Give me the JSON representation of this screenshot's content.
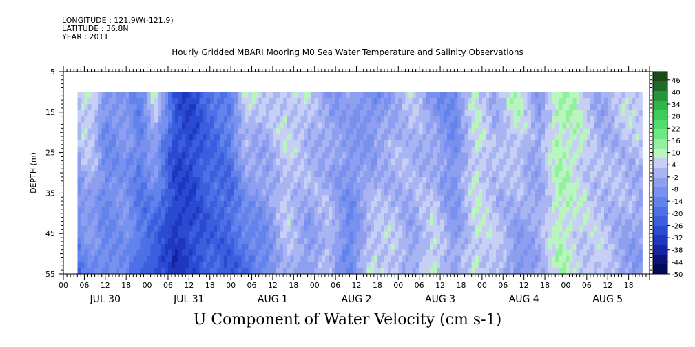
{
  "header": {
    "longitude": "LONGITUDE : 121.9W(-121.9)",
    "latitude": "LATITUDE : 36.8N",
    "year": "YEAR : 2011"
  },
  "chart_data": {
    "type": "heatmap",
    "title": "Hourly Gridded MBARI Mooring M0 Sea Water Temperature and Salinity Observations",
    "variable_label": "U Component of Water Velocity (cm s-1)",
    "ylabel": "DEPTH (m)",
    "ylim": [
      5,
      55
    ],
    "y_inverted": true,
    "y_ticks": [
      5,
      15,
      25,
      35,
      45,
      55
    ],
    "data_depth_range": [
      10,
      55
    ],
    "x_hour_range": [
      0,
      168
    ],
    "data_hour_range": [
      4,
      166
    ],
    "x_hour_ticks": [
      "00",
      "06",
      "12",
      "18",
      "00",
      "06",
      "12",
      "18",
      "00",
      "06",
      "12",
      "18",
      "00",
      "06",
      "12",
      "18",
      "00",
      "06",
      "12",
      "18",
      "00",
      "06",
      "12",
      "18",
      "00",
      "06",
      "12",
      "18"
    ],
    "day_labels": [
      "JUL 30",
      "JUL 31",
      "AUG  1",
      "AUG  2",
      "AUG  3",
      "AUG  4",
      "AUG  5"
    ],
    "colorbar": {
      "min": -50,
      "max": 50,
      "tick_labels": [
        "46",
        "40",
        "34",
        "28",
        "22",
        "16",
        "10",
        "4",
        "-2",
        "-8",
        "-14",
        "-20",
        "-26",
        "-32",
        "-38",
        "-44",
        "-50"
      ],
      "colors": [
        "#1a4a1a",
        "#1f6b2a",
        "#249637",
        "#2fb447",
        "#3ccc5a",
        "#52dc6d",
        "#6ee884",
        "#93f09e",
        "#b8f5bf",
        "#c8cff5",
        "#a9b5f2",
        "#8e9ff0",
        "#7890ee",
        "#6282ec",
        "#4d70e6",
        "#3a5ede",
        "#2a4ad2",
        "#1e36c0",
        "#15239e",
        "#0c147a",
        "#060a5a"
      ]
    },
    "column_profiles": [
      {
        "hour": 4,
        "surface": 4,
        "bottom": -20
      },
      {
        "hour": 6,
        "surface": 10,
        "bottom": -14
      },
      {
        "hour": 9,
        "surface": 6,
        "bottom": -12
      },
      {
        "hour": 12,
        "surface": -10,
        "bottom": -14
      },
      {
        "hour": 18,
        "surface": -6,
        "bottom": -10
      },
      {
        "hour": 22,
        "surface": -14,
        "bottom": -20
      },
      {
        "hour": 26,
        "surface": 8,
        "bottom": -30
      },
      {
        "hour": 32,
        "surface": -26,
        "bottom": -34
      },
      {
        "hour": 36,
        "surface": -30,
        "bottom": -30
      },
      {
        "hour": 42,
        "surface": -20,
        "bottom": -24
      },
      {
        "hour": 48,
        "surface": -14,
        "bottom": -24
      },
      {
        "hour": 52,
        "surface": 8,
        "bottom": -22
      },
      {
        "hour": 58,
        "surface": 2,
        "bottom": -14
      },
      {
        "hour": 64,
        "surface": 6,
        "bottom": 2
      },
      {
        "hour": 70,
        "surface": 4,
        "bottom": -8
      },
      {
        "hour": 76,
        "surface": -6,
        "bottom": 4
      },
      {
        "hour": 82,
        "surface": -4,
        "bottom": -16
      },
      {
        "hour": 88,
        "surface": -12,
        "bottom": 8
      },
      {
        "hour": 94,
        "surface": -4,
        "bottom": 6
      },
      {
        "hour": 100,
        "surface": 4,
        "bottom": -6
      },
      {
        "hour": 106,
        "surface": -8,
        "bottom": 10
      },
      {
        "hour": 112,
        "surface": -14,
        "bottom": -4
      },
      {
        "hour": 118,
        "surface": 8,
        "bottom": 6
      },
      {
        "hour": 124,
        "surface": -2,
        "bottom": 4
      },
      {
        "hour": 130,
        "surface": 12,
        "bottom": -10
      },
      {
        "hour": 136,
        "surface": -6,
        "bottom": -2
      },
      {
        "hour": 142,
        "surface": 12,
        "bottom": 10
      },
      {
        "hour": 148,
        "surface": 8,
        "bottom": 4
      },
      {
        "hour": 154,
        "surface": -4,
        "bottom": 6
      },
      {
        "hour": 160,
        "surface": 4,
        "bottom": -4
      },
      {
        "hour": 166,
        "surface": 6,
        "bottom": -8
      }
    ]
  }
}
